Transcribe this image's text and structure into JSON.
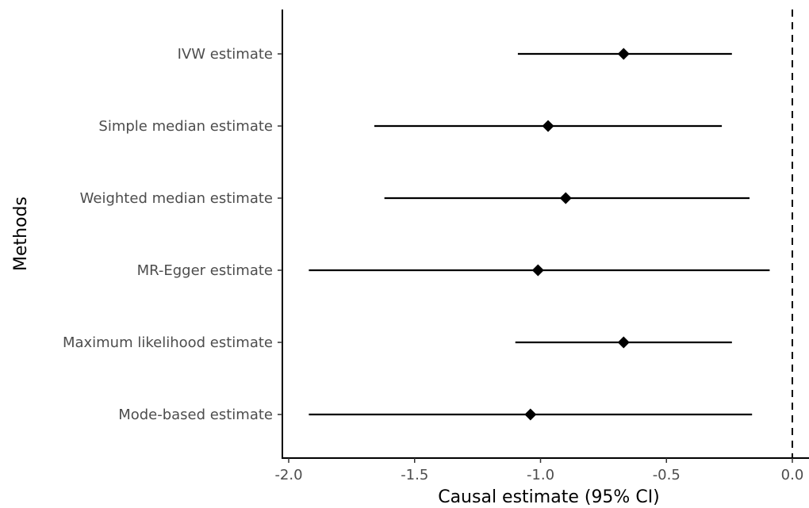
{
  "chart_data": {
    "type": "forest",
    "xlabel": "Causal estimate (95% CI)",
    "ylabel": "Methods",
    "xlim": [
      -2.0,
      0.0
    ],
    "x_ticks": [
      -2.0,
      -1.5,
      -1.0,
      -0.5,
      0.0
    ],
    "x_tick_labels": [
      "-2.0",
      "-1.5",
      "-1.0",
      "-0.5",
      "0.0"
    ],
    "reference_line": 0.0,
    "grid": false,
    "point_shape": "diamond",
    "rows": [
      {
        "label": "IVW estimate",
        "estimate": -0.67,
        "lower": -1.09,
        "upper": -0.24
      },
      {
        "label": "Simple median estimate",
        "estimate": -0.97,
        "lower": -1.66,
        "upper": -0.28
      },
      {
        "label": "Weighted median estimate",
        "estimate": -0.9,
        "lower": -1.62,
        "upper": -0.17
      },
      {
        "label": "MR-Egger estimate",
        "estimate": -1.01,
        "lower": -1.92,
        "upper": -0.09
      },
      {
        "label": "Maximum likelihood estimate",
        "estimate": -0.67,
        "lower": -1.1,
        "upper": -0.24
      },
      {
        "label": "Mode-based estimate",
        "estimate": -1.04,
        "lower": -1.92,
        "upper": -0.16
      }
    ]
  }
}
